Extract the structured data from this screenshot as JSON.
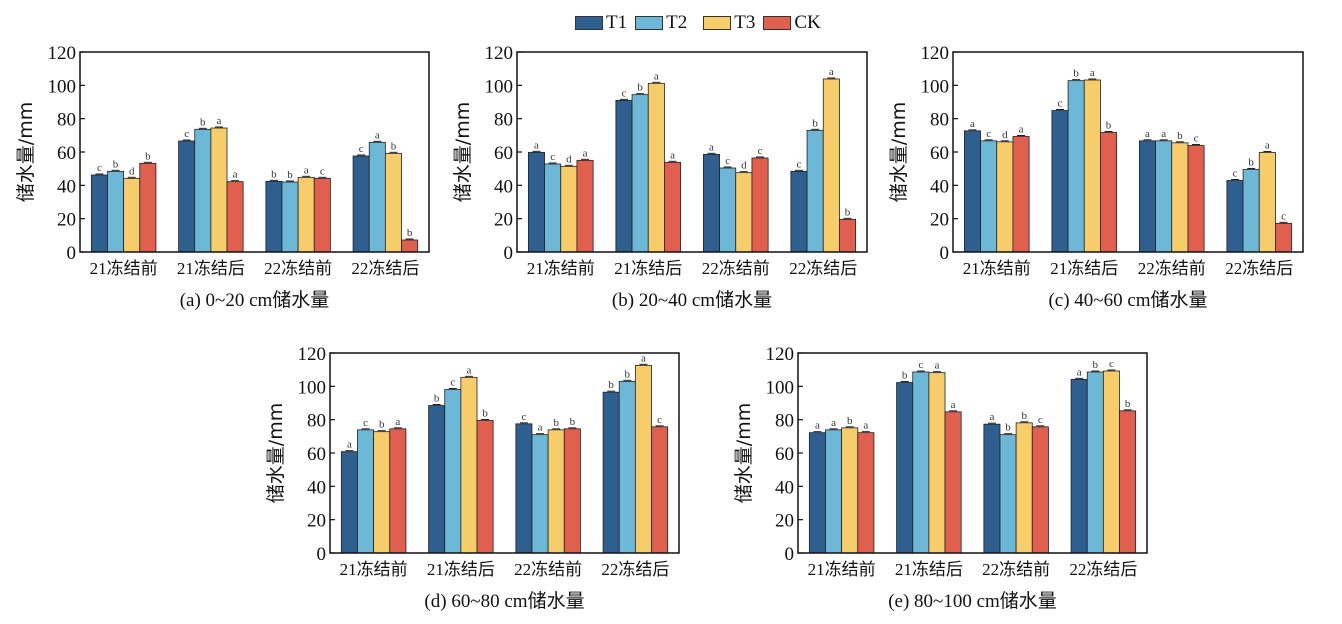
{
  "legend": [
    {
      "name": "T1",
      "color": "#2e5f8f"
    },
    {
      "name": "T2",
      "color": "#6db8d6"
    },
    {
      "name": "T3",
      "color": "#f7cd6b"
    },
    {
      "name": "CK",
      "color": "#e05f4e"
    }
  ],
  "chart_data": [
    {
      "type": "bar",
      "title": "(a) 0~20 cm储水量",
      "xlabel": "",
      "ylabel": "储水量/mm",
      "ylim": [
        0,
        120
      ],
      "yticks": [
        0,
        20,
        40,
        60,
        80,
        100,
        120
      ],
      "categories": [
        "21冻结前",
        "21冻结后",
        "22冻结前",
        "22冻结后"
      ],
      "series": [
        {
          "name": "T1",
          "values": [
            46.2,
            66.6,
            42.4,
            57.6
          ],
          "letters": [
            "c",
            "c",
            "b",
            "c"
          ]
        },
        {
          "name": "T2",
          "values": [
            48.4,
            73.6,
            42.0,
            65.8
          ],
          "letters": [
            "b",
            "b",
            "b",
            "a"
          ]
        },
        {
          "name": "T3",
          "values": [
            44.2,
            74.4,
            44.8,
            59.2
          ],
          "letters": [
            "d",
            "a",
            "a",
            "b"
          ]
        },
        {
          "name": "CK",
          "values": [
            53.2,
            42.2,
            44.2,
            7.2
          ],
          "letters": [
            "b",
            "a",
            "c",
            "b"
          ]
        }
      ]
    },
    {
      "type": "bar",
      "title": "(b) 20~40 cm储水量",
      "xlabel": "",
      "ylabel": "储水量/mm",
      "ylim": [
        0,
        120
      ],
      "yticks": [
        0,
        20,
        40,
        60,
        80,
        100,
        120
      ],
      "categories": [
        "21冻结前",
        "21冻结后",
        "22冻结前",
        "22冻结后"
      ],
      "series": [
        {
          "name": "T1",
          "values": [
            59.8,
            91.0,
            58.6,
            48.4
          ],
          "letters": [
            "a",
            "c",
            "a",
            "c"
          ]
        },
        {
          "name": "T2",
          "values": [
            52.8,
            94.4,
            50.4,
            73.0
          ],
          "letters": [
            "c",
            "b",
            "c",
            "b"
          ]
        },
        {
          "name": "T3",
          "values": [
            51.4,
            101.2,
            47.6,
            103.8
          ],
          "letters": [
            "d",
            "a",
            "d",
            "a"
          ]
        },
        {
          "name": "CK",
          "values": [
            55.0,
            53.8,
            56.4,
            19.6
          ],
          "letters": [
            "a",
            "a",
            "c",
            "b"
          ]
        }
      ]
    },
    {
      "type": "bar",
      "title": "(c) 40~60 cm储水量",
      "xlabel": "",
      "ylabel": "储水量/mm",
      "ylim": [
        0,
        120
      ],
      "yticks": [
        0,
        20,
        40,
        60,
        80,
        100,
        120
      ],
      "categories": [
        "21冻结前",
        "21冻结后",
        "22冻结前",
        "22冻结后"
      ],
      "series": [
        {
          "name": "T1",
          "values": [
            72.7,
            84.9,
            66.7,
            42.9
          ],
          "letters": [
            "a",
            "c",
            "a",
            "c"
          ]
        },
        {
          "name": "T2",
          "values": [
            66.7,
            102.8,
            66.7,
            49.5
          ],
          "letters": [
            "c",
            "b",
            "a",
            "b"
          ]
        },
        {
          "name": "T3",
          "values": [
            66.1,
            103.2,
            65.5,
            59.7
          ],
          "letters": [
            "d",
            "a",
            "b",
            "a"
          ]
        },
        {
          "name": "CK",
          "values": [
            69.3,
            71.7,
            63.9,
            17.2
          ],
          "letters": [
            "a",
            "b",
            "c",
            "c"
          ]
        }
      ]
    },
    {
      "type": "bar",
      "title": "(d) 60~80 cm储水量",
      "xlabel": "",
      "ylabel": "储水量/mm",
      "ylim": [
        0,
        120
      ],
      "yticks": [
        0,
        20,
        40,
        60,
        80,
        100,
        120
      ],
      "categories": [
        "21冻结前",
        "21冻结后",
        "22冻结前",
        "22冻结后"
      ],
      "series": [
        {
          "name": "T1",
          "values": [
            60.8,
            88.5,
            77.5,
            96.5
          ],
          "letters": [
            "a",
            "b",
            "c",
            "b"
          ]
        },
        {
          "name": "T2",
          "values": [
            73.9,
            98.1,
            71.0,
            103.0
          ],
          "letters": [
            "c",
            "c",
            "a",
            "b"
          ]
        },
        {
          "name": "T3",
          "values": [
            72.8,
            105.4,
            73.9,
            112.6
          ],
          "letters": [
            "b",
            "a",
            "b",
            "a"
          ]
        },
        {
          "name": "CK",
          "values": [
            74.5,
            79.5,
            74.5,
            75.7
          ],
          "letters": [
            "a",
            "b",
            "b",
            "c"
          ]
        }
      ]
    },
    {
      "type": "bar",
      "title": "(e) 80~100 cm储水量",
      "xlabel": "",
      "ylabel": "储水量/mm",
      "ylim": [
        0,
        120
      ],
      "yticks": [
        0,
        20,
        40,
        60,
        80,
        100,
        120
      ],
      "categories": [
        "21冻结前",
        "21冻结后",
        "22冻结前",
        "22冻结后"
      ],
      "series": [
        {
          "name": "T1",
          "values": [
            72.2,
            102.3,
            77.3,
            104.2
          ],
          "letters": [
            "a",
            "b",
            "a",
            "a"
          ]
        },
        {
          "name": "T2",
          "values": [
            73.9,
            108.6,
            71.0,
            108.6
          ],
          "letters": [
            "a",
            "c",
            "b",
            "b"
          ]
        },
        {
          "name": "T3",
          "values": [
            75.1,
            108.2,
            78.1,
            109.2
          ],
          "letters": [
            "b",
            "a",
            "b",
            "c"
          ]
        },
        {
          "name": "CK",
          "values": [
            72.2,
            84.7,
            75.7,
            85.3
          ],
          "letters": [
            "a",
            "a",
            "c",
            "b"
          ]
        }
      ]
    }
  ]
}
